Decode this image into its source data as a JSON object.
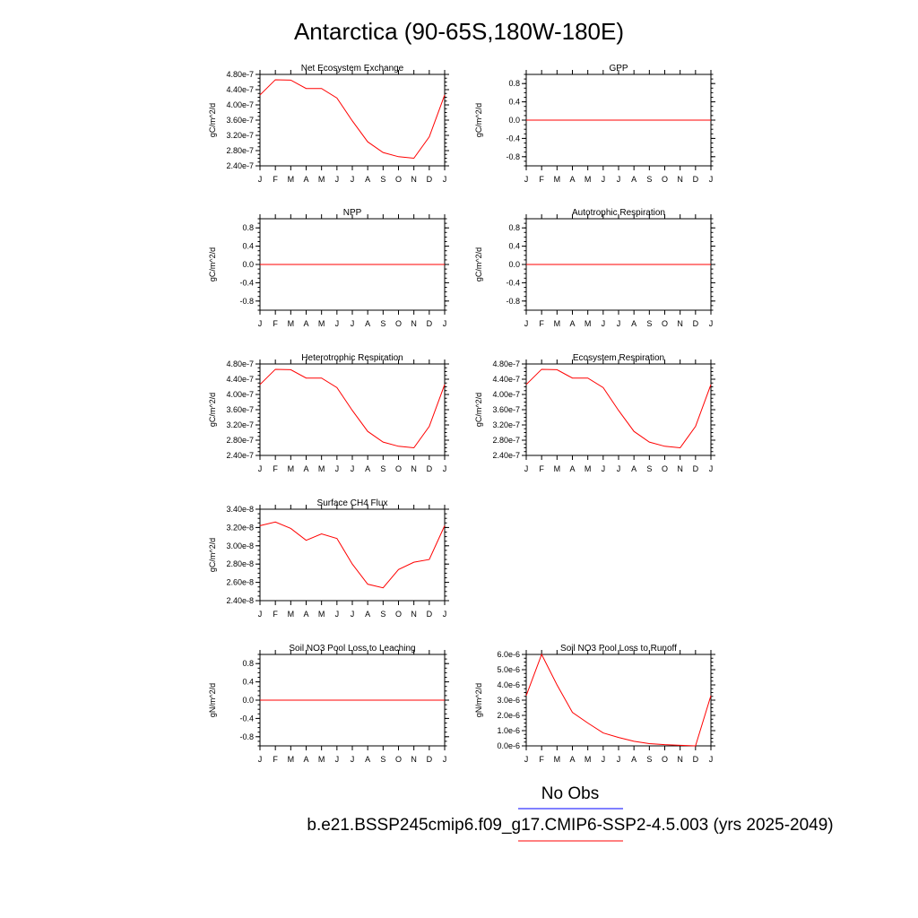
{
  "title": "Antarctica (90-65S,180W-180E)",
  "months": [
    "J",
    "F",
    "M",
    "A",
    "M",
    "J",
    "J",
    "A",
    "S",
    "O",
    "N",
    "D",
    "J"
  ],
  "colors": {
    "series": "#ff0000",
    "obs": "#0000ff",
    "axis": "#000000"
  },
  "legend": [
    {
      "label": "No Obs",
      "color": "#0000ff"
    },
    {
      "label": "b.e21.BSSP245cmip6.f09_g17.CMIP6-SSP2-4.5.003 (yrs 2025-2049)",
      "color": "#ff0000"
    }
  ],
  "chart_data": [
    {
      "type": "line",
      "title": "Net Ecosystem Exchange",
      "ylabel": "gC/m^2/d",
      "ylim": [
        2.4e-07,
        4.8e-07
      ],
      "yticks": [
        2.4e-07,
        2.8e-07,
        3.2e-07,
        3.6e-07,
        4e-07,
        4.4e-07,
        4.8e-07
      ],
      "ytick_labels": [
        "2.40e-7",
        "2.80e-7",
        "3.20e-7",
        "3.60e-7",
        "4.00e-7",
        "4.40e-7",
        "4.80e-7"
      ],
      "series": [
        {
          "values": [
            4.26e-07,
            4.66e-07,
            4.65e-07,
            4.43e-07,
            4.43e-07,
            4.18e-07,
            3.58e-07,
            3.03e-07,
            2.75e-07,
            2.64e-07,
            2.6e-07,
            3.16e-07,
            4.26e-07
          ]
        }
      ]
    },
    {
      "type": "line",
      "title": "GPP",
      "ylabel": "gC/m^2/d",
      "ylim": [
        -1,
        1
      ],
      "yticks": [
        -0.8,
        -0.4,
        0.0,
        0.4,
        0.8
      ],
      "ytick_labels": [
        "-0.8",
        "-0.4",
        "0.0",
        "0.4",
        "0.8"
      ],
      "series": [
        {
          "values": [
            0,
            0,
            0,
            0,
            0,
            0,
            0,
            0,
            0,
            0,
            0,
            0,
            0
          ]
        }
      ]
    },
    {
      "type": "line",
      "title": "NPP",
      "ylabel": "gC/m^2/d",
      "ylim": [
        -1,
        1
      ],
      "yticks": [
        -0.8,
        -0.4,
        0.0,
        0.4,
        0.8
      ],
      "ytick_labels": [
        "-0.8",
        "-0.4",
        "0.0",
        "0.4",
        "0.8"
      ],
      "series": [
        {
          "values": [
            0,
            0,
            0,
            0,
            0,
            0,
            0,
            0,
            0,
            0,
            0,
            0,
            0
          ]
        }
      ]
    },
    {
      "type": "line",
      "title": "Autotrophic Respiration",
      "ylabel": "gC/m^2/d",
      "ylim": [
        -1,
        1
      ],
      "yticks": [
        -0.8,
        -0.4,
        0.0,
        0.4,
        0.8
      ],
      "ytick_labels": [
        "-0.8",
        "-0.4",
        "0.0",
        "0.4",
        "0.8"
      ],
      "series": [
        {
          "values": [
            0,
            0,
            0,
            0,
            0,
            0,
            0,
            0,
            0,
            0,
            0,
            0,
            0
          ]
        }
      ]
    },
    {
      "type": "line",
      "title": "Heterotrophic Respiration",
      "ylabel": "gC/m^2/d",
      "ylim": [
        2.4e-07,
        4.8e-07
      ],
      "yticks": [
        2.4e-07,
        2.8e-07,
        3.2e-07,
        3.6e-07,
        4e-07,
        4.4e-07,
        4.8e-07
      ],
      "ytick_labels": [
        "2.40e-7",
        "2.80e-7",
        "3.20e-7",
        "3.60e-7",
        "4.00e-7",
        "4.40e-7",
        "4.80e-7"
      ],
      "series": [
        {
          "values": [
            4.26e-07,
            4.66e-07,
            4.65e-07,
            4.43e-07,
            4.43e-07,
            4.18e-07,
            3.58e-07,
            3.03e-07,
            2.75e-07,
            2.64e-07,
            2.6e-07,
            3.16e-07,
            4.26e-07
          ]
        }
      ]
    },
    {
      "type": "line",
      "title": "Ecosystem Respiration",
      "ylabel": "gC/m^2/d",
      "ylim": [
        2.4e-07,
        4.8e-07
      ],
      "yticks": [
        2.4e-07,
        2.8e-07,
        3.2e-07,
        3.6e-07,
        4e-07,
        4.4e-07,
        4.8e-07
      ],
      "ytick_labels": [
        "2.40e-7",
        "2.80e-7",
        "3.20e-7",
        "3.60e-7",
        "4.00e-7",
        "4.40e-7",
        "4.80e-7"
      ],
      "series": [
        {
          "values": [
            4.26e-07,
            4.66e-07,
            4.65e-07,
            4.43e-07,
            4.43e-07,
            4.18e-07,
            3.58e-07,
            3.03e-07,
            2.75e-07,
            2.64e-07,
            2.6e-07,
            3.16e-07,
            4.26e-07
          ]
        }
      ]
    },
    {
      "type": "line",
      "title": "Surface CH4 Flux",
      "ylabel": "gC/m^2/d",
      "ylim": [
        2.4e-08,
        3.4e-08
      ],
      "yticks": [
        2.4e-08,
        2.6e-08,
        2.8e-08,
        3e-08,
        3.2e-08,
        3.4e-08
      ],
      "ytick_labels": [
        "2.40e-8",
        "2.60e-8",
        "2.80e-8",
        "3.00e-8",
        "3.20e-8",
        "3.40e-8"
      ],
      "series": [
        {
          "values": [
            3.22e-08,
            3.26e-08,
            3.19e-08,
            3.06e-08,
            3.13e-08,
            3.08e-08,
            2.8e-08,
            2.58e-08,
            2.54e-08,
            2.74e-08,
            2.82e-08,
            2.85e-08,
            3.22e-08
          ]
        }
      ]
    },
    {
      "type": "line",
      "title": "Soil NO3 Pool Loss to Leaching",
      "ylabel": "gN/m^2/d",
      "ylim": [
        -1,
        1
      ],
      "yticks": [
        -0.8,
        -0.4,
        0.0,
        0.4,
        0.8
      ],
      "ytick_labels": [
        "-0.8",
        "-0.4",
        "0.0",
        "0.4",
        "0.8"
      ],
      "series": [
        {
          "values": [
            0,
            0,
            0,
            0,
            0,
            0,
            0,
            0,
            0,
            0,
            0,
            0,
            0
          ]
        }
      ]
    },
    {
      "type": "line",
      "title": "Soil NO3 Pool Loss to Runoff",
      "ylabel": "gN/m^2/d",
      "ylim": [
        0,
        6e-06
      ],
      "yticks": [
        0,
        1e-06,
        2e-06,
        3e-06,
        4e-06,
        5e-06,
        6e-06
      ],
      "ytick_labels": [
        "0.0e-6",
        "1.0e-6",
        "2.0e-6",
        "3.0e-6",
        "4.0e-6",
        "5.0e-6",
        "6.0e-6"
      ],
      "series": [
        {
          "values": [
            3.3e-06,
            6e-06,
            4e-06,
            2.2e-06,
            1.5e-06,
            8.5e-07,
            5.5e-07,
            3e-07,
            1.5e-07,
            8e-08,
            4e-08,
            0.0,
            3.3e-06
          ]
        }
      ]
    }
  ]
}
